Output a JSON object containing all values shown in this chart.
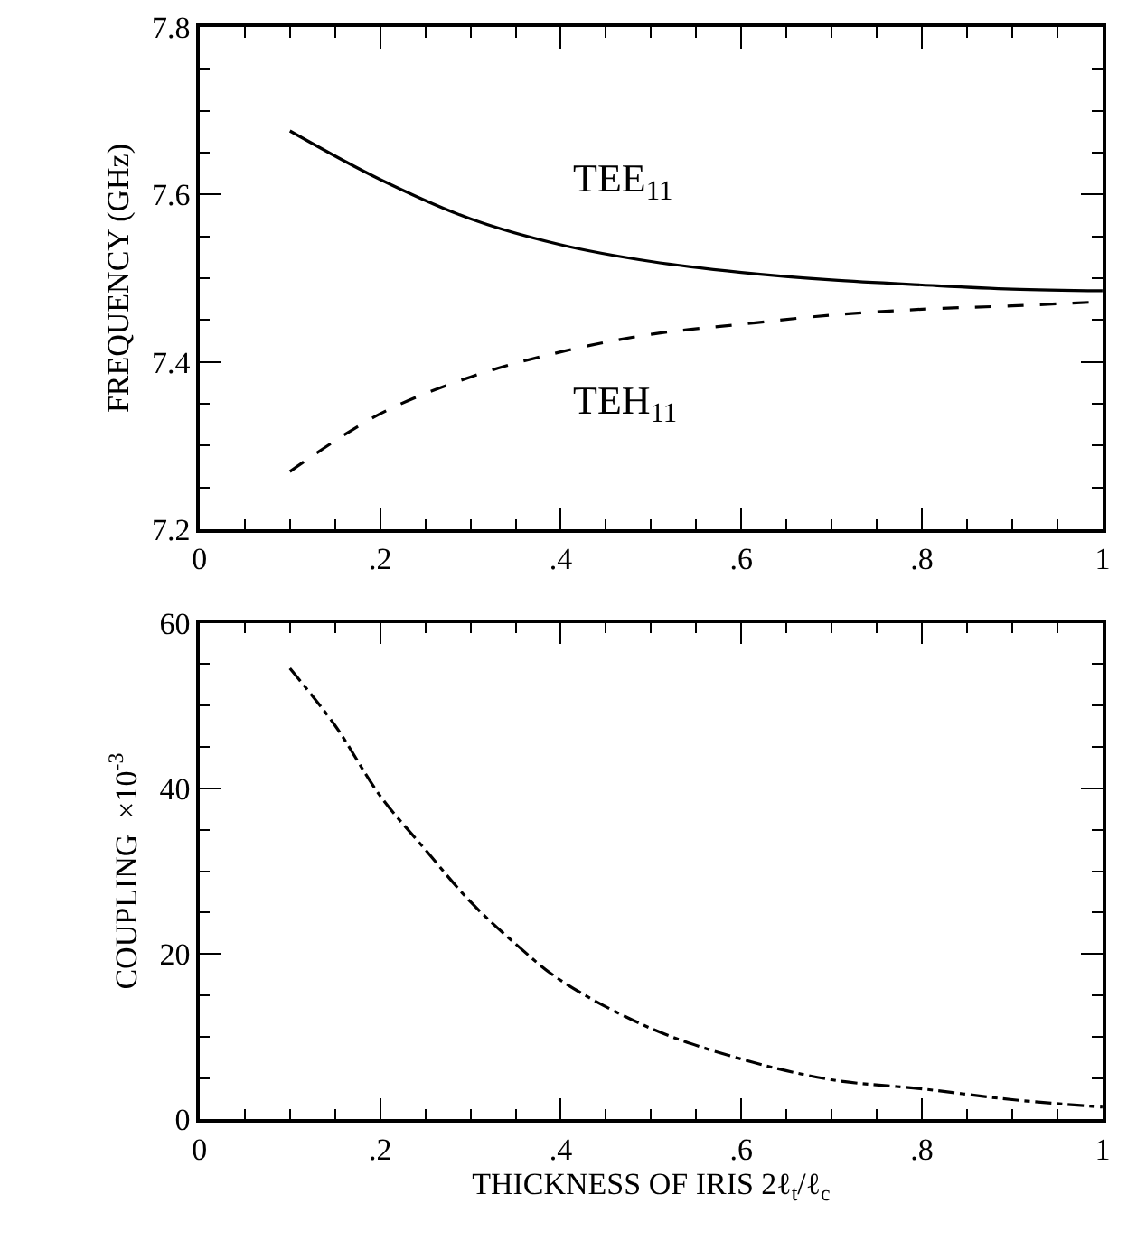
{
  "chart_data": [
    {
      "type": "line",
      "ylabel": "FREQUENCY (GHz)",
      "xlim": [
        0,
        1
      ],
      "ylim": [
        7.2,
        7.8
      ],
      "xticks": [
        {
          "value": 0,
          "label": "0"
        },
        {
          "value": 0.2,
          "label": ".2"
        },
        {
          "value": 0.4,
          "label": ".4"
        },
        {
          "value": 0.6,
          "label": ".6"
        },
        {
          "value": 0.8,
          "label": ".8"
        },
        {
          "value": 1,
          "label": "1"
        }
      ],
      "yticks": [
        7.2,
        7.4,
        7.6,
        7.8
      ],
      "marker": "none",
      "x": [
        0.1,
        0.2,
        0.3,
        0.4,
        0.5,
        0.6,
        0.7,
        0.8,
        0.9,
        1.0
      ],
      "series": [
        {
          "name": "TEE$_{11}$",
          "color": "#000000",
          "line_style": "solid",
          "values": [
            7.676,
            7.618,
            7.571,
            7.54,
            7.52,
            7.507,
            7.498,
            7.492,
            7.487,
            7.485
          ]
        },
        {
          "name": "TEH$_{11}$",
          "color": "#000000",
          "line_style": "dashed",
          "values": [
            7.269,
            7.338,
            7.382,
            7.412,
            7.433,
            7.445,
            7.456,
            7.463,
            7.467,
            7.472
          ]
        }
      ]
    },
    {
      "type": "line",
      "xlabel": "THICKNESS OF IRIS 2ℓ$_{t}$/ℓ$_{c}$",
      "ylabel": "COUPLING  ×10$^{-3}$",
      "xlim": [
        0,
        1
      ],
      "ylim": [
        0,
        60
      ],
      "xticks": [
        {
          "value": 0,
          "label": "0"
        },
        {
          "value": 0.2,
          "label": ".2"
        },
        {
          "value": 0.4,
          "label": ".4"
        },
        {
          "value": 0.6,
          "label": ".6"
        },
        {
          "value": 0.8,
          "label": ".8"
        },
        {
          "value": 1,
          "label": "1"
        }
      ],
      "yticks": [
        0,
        20,
        40,
        60
      ],
      "marker": "none",
      "x": [
        0.1,
        0.15,
        0.2,
        0.25,
        0.3,
        0.35,
        0.4,
        0.5,
        0.6,
        0.7,
        0.8,
        0.9,
        1.0
      ],
      "series": [
        {
          "color": "#000000",
          "line_style": "dashdot",
          "values": [
            54.5,
            47.6,
            39.1,
            32.6,
            26.3,
            21.2,
            16.8,
            11.0,
            7.3,
            4.8,
            3.7,
            2.4,
            1.5
          ]
        }
      ]
    }
  ]
}
